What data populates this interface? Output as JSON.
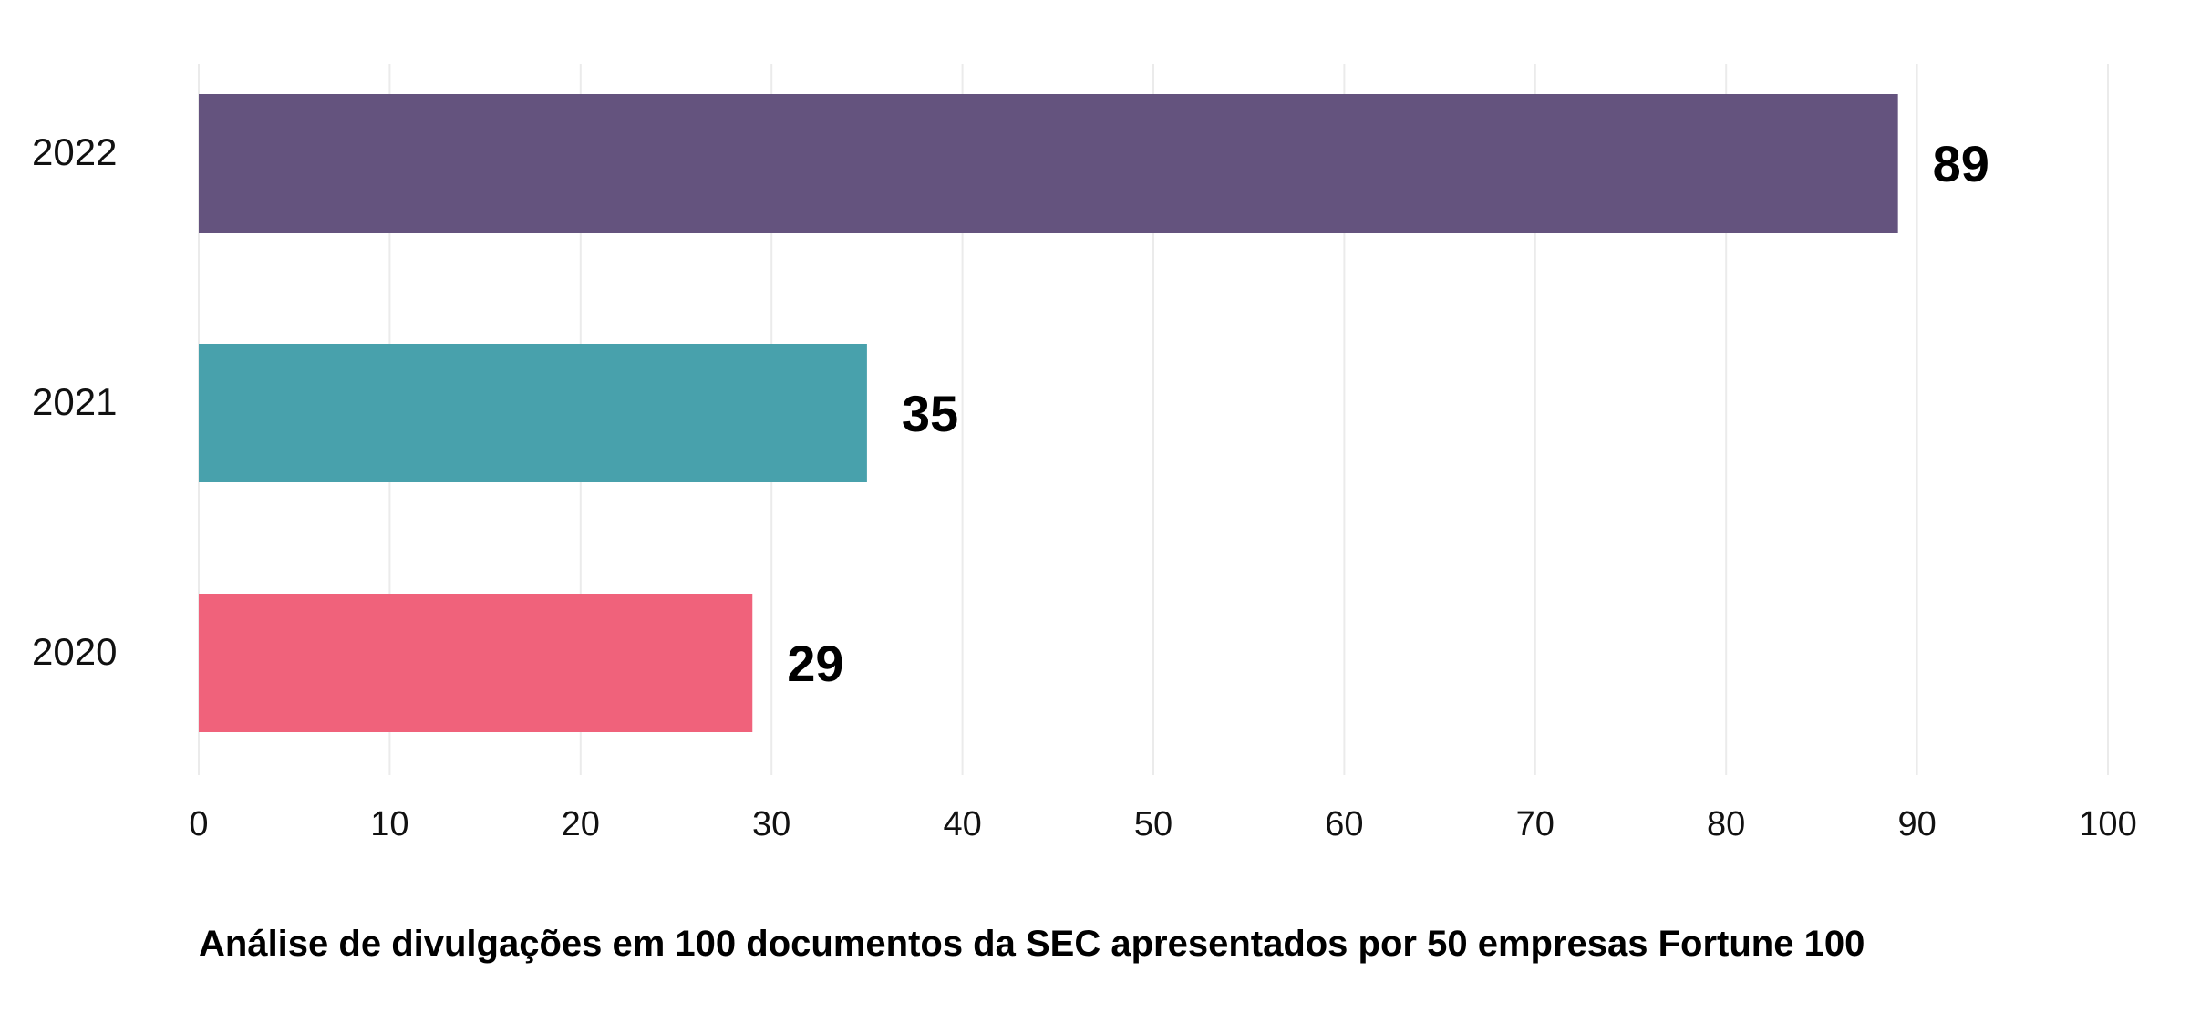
{
  "chart_data": {
    "type": "bar",
    "orientation": "horizontal",
    "categories": [
      "2022",
      "2021",
      "2020"
    ],
    "values": [
      89,
      35,
      29
    ],
    "value_labels": [
      "89",
      "35",
      "29"
    ],
    "colors": [
      "#64537e",
      "#48a1ac",
      "#f0627b"
    ],
    "xlim": [
      0,
      100
    ],
    "xticks": [
      0,
      10,
      20,
      30,
      40,
      50,
      60,
      70,
      80,
      90,
      100
    ],
    "xtick_labels": [
      "0",
      "10",
      "20",
      "30",
      "40",
      "50",
      "60",
      "70",
      "80",
      "90",
      "100"
    ],
    "grid": true,
    "legend": "none",
    "title": "",
    "xlabel": "",
    "ylabel": "",
    "caption": "Análise de divulgações em 100 documentos da SEC apresentados por 50 empresas Fortune 100"
  }
}
